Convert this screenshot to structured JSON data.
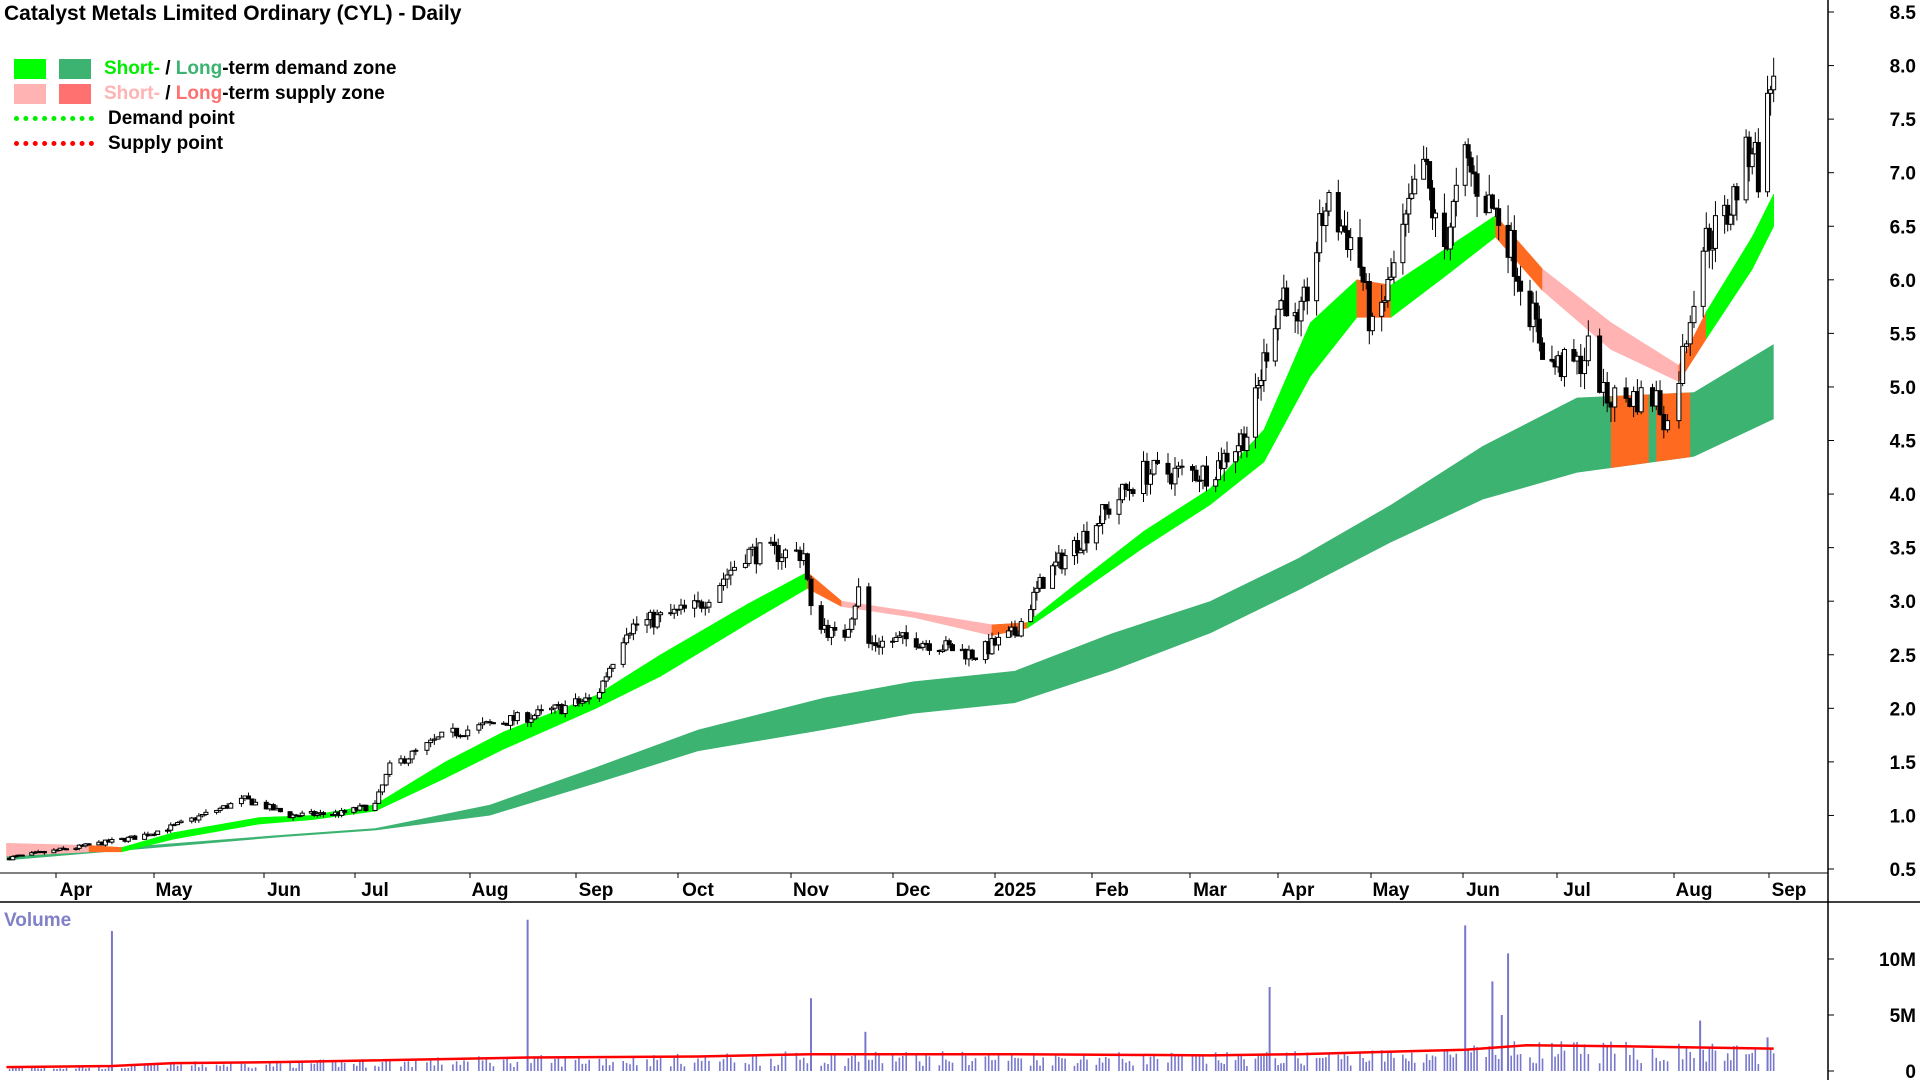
{
  "title": "Catalyst Metals Limited Ordinary (CYL) - Daily",
  "legend": {
    "demand_zone": {
      "short": "Short-",
      "sep": " / ",
      "long": "Long",
      "rest": "-term demand zone"
    },
    "supply_zone": {
      "short": "Short-",
      "sep": " / ",
      "long": "Long",
      "rest": "-term supply zone"
    },
    "demand_point": "Demand point",
    "supply_point": "Supply point"
  },
  "colors": {
    "short_demand": "#00ff00",
    "long_demand": "#3cb371",
    "short_supply": "#ffb3b3",
    "long_supply": "#ff7070",
    "active_supply": "#ff6a21",
    "demand_point": "#00ee00",
    "supply_point": "#ff0000",
    "volume": "#7777cc",
    "volume_ma": "#ff0000"
  },
  "chart_data": {
    "type": "candlestick",
    "title": "Catalyst Metals Limited Ordinary (CYL) - Daily",
    "ylim": [
      0.5,
      8.5
    ],
    "y_ticks": [
      "8.5",
      "8.0",
      "7.5",
      "7.0",
      "6.5",
      "6.0",
      "5.5",
      "5.0",
      "4.5",
      "4.0",
      "3.5",
      "3.0",
      "2.5",
      "2.0",
      "1.5",
      "1.0",
      "0.5"
    ],
    "x_ticks": [
      "Apr",
      "May",
      "Jun",
      "Jul",
      "Aug",
      "Sep",
      "Oct",
      "Nov",
      "Dec",
      "2025",
      "Feb",
      "Mar",
      "Apr",
      "May",
      "Jun",
      "Jul",
      "Aug",
      "Sep"
    ],
    "close_path": [
      [
        "2024-03-10",
        0.6
      ],
      [
        "2024-04-01",
        0.7
      ],
      [
        "2024-04-20",
        0.8
      ],
      [
        "2024-05-01",
        0.9
      ],
      [
        "2024-05-21",
        1.15
      ],
      [
        "2024-06-03",
        1.0
      ],
      [
        "2024-06-20",
        1.02
      ],
      [
        "2024-07-01",
        1.1
      ],
      [
        "2024-07-05",
        1.45
      ],
      [
        "2024-07-20",
        1.75
      ],
      [
        "2024-08-01",
        1.85
      ],
      [
        "2024-08-16",
        1.95
      ],
      [
        "2024-09-01",
        2.1
      ],
      [
        "2024-09-10",
        2.75
      ],
      [
        "2024-10-01",
        2.95
      ],
      [
        "2024-10-14",
        3.45
      ],
      [
        "2024-10-30",
        3.45
      ],
      [
        "2024-11-01",
        2.9
      ],
      [
        "2024-11-10",
        2.6
      ],
      [
        "2024-11-16",
        3.2
      ],
      [
        "2024-11-18",
        2.6
      ],
      [
        "2024-12-01",
        2.65
      ],
      [
        "2024-12-20",
        2.5
      ],
      [
        "2025-01-01",
        2.7
      ],
      [
        "2025-01-10",
        3.2
      ],
      [
        "2025-02-01",
        3.9
      ],
      [
        "2025-02-10",
        4.2
      ],
      [
        "2025-03-01",
        4.2
      ],
      [
        "2025-03-15",
        4.6
      ],
      [
        "2025-03-22",
        5.5
      ],
      [
        "2025-03-27",
        5.9
      ],
      [
        "2025-04-01",
        5.5
      ],
      [
        "2025-04-10",
        6.7
      ],
      [
        "2025-04-20",
        6.3
      ],
      [
        "2025-04-25",
        5.5
      ],
      [
        "2025-05-01",
        6.0
      ],
      [
        "2025-05-12",
        7.1
      ],
      [
        "2025-05-18",
        6.2
      ],
      [
        "2025-05-26",
        7.1
      ],
      [
        "2025-06-01",
        6.8
      ],
      [
        "2025-06-08",
        6.5
      ],
      [
        "2025-06-14",
        5.9
      ],
      [
        "2025-06-22",
        5.2
      ],
      [
        "2025-07-01",
        5.2
      ],
      [
        "2025-07-05",
        5.4
      ],
      [
        "2025-07-08",
        4.9
      ],
      [
        "2025-07-22",
        4.9
      ],
      [
        "2025-07-25",
        4.65
      ],
      [
        "2025-07-29",
        5.3
      ],
      [
        "2025-08-03",
        6.3
      ],
      [
        "2025-08-12",
        6.6
      ],
      [
        "2025-08-20",
        7.3
      ],
      [
        "2025-08-22",
        7.0
      ],
      [
        "2025-08-27",
        8.0
      ]
    ],
    "short_term_zone": [
      [
        "2024-03-10",
        0.62,
        0.74,
        "supply"
      ],
      [
        "2024-04-05",
        0.66,
        0.72,
        "active"
      ],
      [
        "2024-04-15",
        0.66,
        0.7,
        "demand"
      ],
      [
        "2024-05-01",
        0.78,
        0.84,
        "demand"
      ],
      [
        "2024-05-25",
        0.92,
        0.98,
        "demand"
      ],
      [
        "2024-06-10",
        0.96,
        1.0,
        "demand"
      ],
      [
        "2024-07-01",
        1.04,
        1.1,
        "demand"
      ],
      [
        "2024-07-20",
        1.35,
        1.5,
        "demand"
      ],
      [
        "2024-08-05",
        1.62,
        1.78,
        "demand"
      ],
      [
        "2024-09-01",
        2.0,
        2.12,
        "demand"
      ],
      [
        "2024-09-20",
        2.3,
        2.5,
        "demand"
      ],
      [
        "2024-10-15",
        2.8,
        2.98,
        "demand"
      ],
      [
        "2024-10-31",
        3.12,
        3.27,
        "active"
      ],
      [
        "2024-11-10",
        2.95,
        3.0,
        "supply"
      ],
      [
        "2024-12-01",
        2.85,
        2.9,
        "supply"
      ],
      [
        "2024-12-25",
        2.68,
        2.78,
        "active"
      ],
      [
        "2025-01-05",
        2.75,
        2.8,
        "demand"
      ],
      [
        "2025-01-20",
        3.05,
        3.15,
        "demand"
      ],
      [
        "2025-02-10",
        3.5,
        3.65,
        "demand"
      ],
      [
        "2025-03-01",
        3.9,
        4.05,
        "demand"
      ],
      [
        "2025-03-20",
        4.3,
        4.6,
        "demand"
      ],
      [
        "2025-04-05",
        5.1,
        5.6,
        "demand"
      ],
      [
        "2025-04-20",
        5.65,
        6.0,
        "active"
      ],
      [
        "2025-05-01",
        5.65,
        5.95,
        "demand"
      ],
      [
        "2025-05-20",
        6.05,
        6.3,
        "demand"
      ],
      [
        "2025-06-05",
        6.4,
        6.6,
        "active"
      ],
      [
        "2025-06-20",
        5.9,
        6.1,
        "supply"
      ],
      [
        "2025-07-10",
        5.35,
        5.6,
        "supply"
      ],
      [
        "2025-07-28",
        5.05,
        5.2,
        "active"
      ],
      [
        "2025-08-05",
        5.45,
        5.7,
        "demand"
      ],
      [
        "2025-08-20",
        6.1,
        6.4,
        "demand"
      ],
      [
        "2025-08-27",
        6.5,
        6.8,
        "demand"
      ]
    ],
    "long_term_zone": [
      [
        "2024-03-10",
        0.58,
        0.62
      ],
      [
        "2024-06-01",
        0.8,
        0.82
      ],
      [
        "2024-07-01",
        0.86,
        0.88
      ],
      [
        "2024-08-01",
        1.0,
        1.1
      ],
      [
        "2024-09-01",
        1.3,
        1.45
      ],
      [
        "2024-10-01",
        1.6,
        1.8
      ],
      [
        "2024-11-05",
        1.8,
        2.1
      ],
      [
        "2024-12-01",
        1.95,
        2.25
      ],
      [
        "2025-01-01",
        2.05,
        2.35
      ],
      [
        "2025-02-01",
        2.35,
        2.7
      ],
      [
        "2025-03-01",
        2.7,
        3.0
      ],
      [
        "2025-04-01",
        3.1,
        3.4
      ],
      [
        "2025-05-01",
        3.55,
        3.9
      ],
      [
        "2025-06-01",
        3.95,
        4.45
      ],
      [
        "2025-07-01",
        4.2,
        4.9
      ],
      [
        "2025-08-01",
        4.35,
        4.95
      ],
      [
        "2025-08-27",
        4.7,
        5.4
      ]
    ],
    "long_term_supply_blocks": [
      [
        "2025-07-10",
        "2025-07-20"
      ],
      [
        "2025-07-22",
        "2025-07-31"
      ]
    ],
    "volume": {
      "label": "Volume",
      "y_ticks": [
        "10M",
        "5M",
        "0"
      ],
      "ylim": [
        0,
        12500000
      ],
      "moving_average": [
        [
          "2024-03-10",
          0.35
        ],
        [
          "2024-04-12",
          0.45
        ],
        [
          "2024-05-01",
          0.7
        ],
        [
          "2024-06-01",
          0.8
        ],
        [
          "2024-07-01",
          0.95
        ],
        [
          "2024-08-12",
          1.2
        ],
        [
          "2024-10-01",
          1.3
        ],
        [
          "2024-11-01",
          1.5
        ],
        [
          "2025-01-01",
          1.5
        ],
        [
          "2025-03-01",
          1.4
        ],
        [
          "2025-04-01",
          1.5
        ],
        [
          "2025-05-26",
          1.9
        ],
        [
          "2025-06-15",
          2.3
        ],
        [
          "2025-07-15",
          2.2
        ],
        [
          "2025-08-27",
          2.0
        ]
      ],
      "spikes_millions": [
        [
          "2024-04-12",
          12.5
        ],
        [
          "2024-08-12",
          13.5
        ],
        [
          "2024-11-01",
          6.5
        ],
        [
          "2024-11-17",
          3.5
        ],
        [
          "2025-03-22",
          7.5
        ],
        [
          "2025-05-26",
          13.0
        ],
        [
          "2025-06-04",
          8.0
        ],
        [
          "2025-06-07",
          5.0
        ],
        [
          "2025-06-09",
          10.5
        ],
        [
          "2025-08-03",
          4.5
        ],
        [
          "2025-08-25",
          3.0
        ]
      ]
    }
  }
}
